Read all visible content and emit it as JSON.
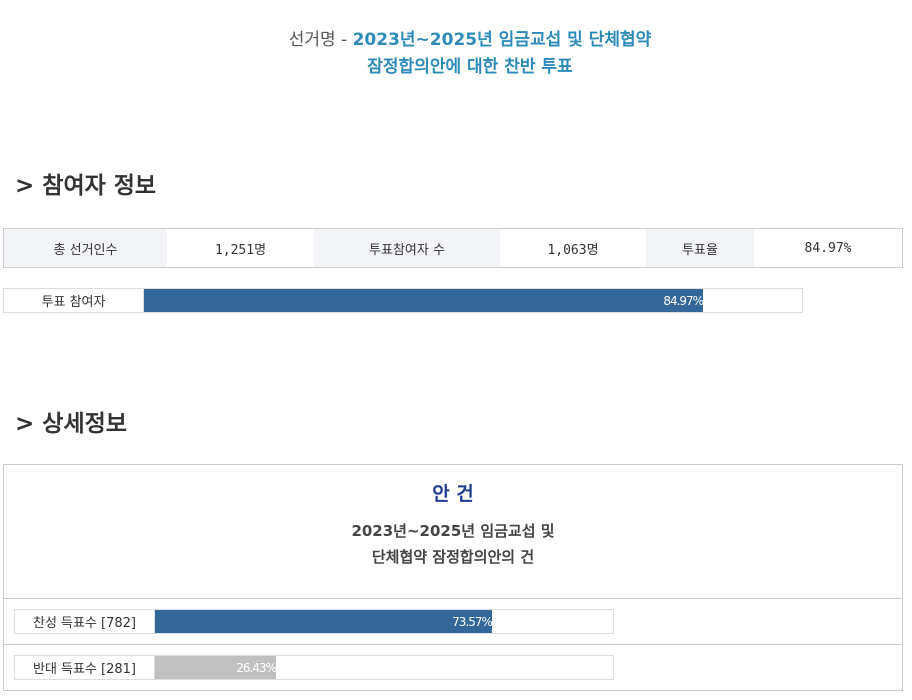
{
  "header": {
    "prefix": "선거명 - ",
    "title_line1": "2023년~2025년 임금교섭 및 단체협약",
    "title_line2": "잠정합의안에 대한 찬반 투표"
  },
  "participation": {
    "heading": "> 참여자 정보",
    "stats": [
      {
        "label": "총 선거인수",
        "value": "1,251명"
      },
      {
        "label": "투표참여자 수",
        "value": "1,063명"
      },
      {
        "label": "투표율",
        "value": "84.97%"
      }
    ],
    "bar": {
      "label": "투표 참여자",
      "percent": 84.97,
      "text": "84.97%",
      "color": "#336699"
    }
  },
  "detail": {
    "heading": "> 상세정보",
    "agenda_title": "안 건",
    "agenda_line1": "2023년~2025년 임금교섭 및",
    "agenda_line2": "단체협약 잠정합의안의 건",
    "results": [
      {
        "label": "찬성 득표수 [782]",
        "percent": 73.57,
        "text": "73.57%",
        "color": "#336699"
      },
      {
        "label": "반대 득표수 [281]",
        "percent": 26.43,
        "text": "26.43%",
        "color": "#c0c0c0"
      }
    ]
  }
}
